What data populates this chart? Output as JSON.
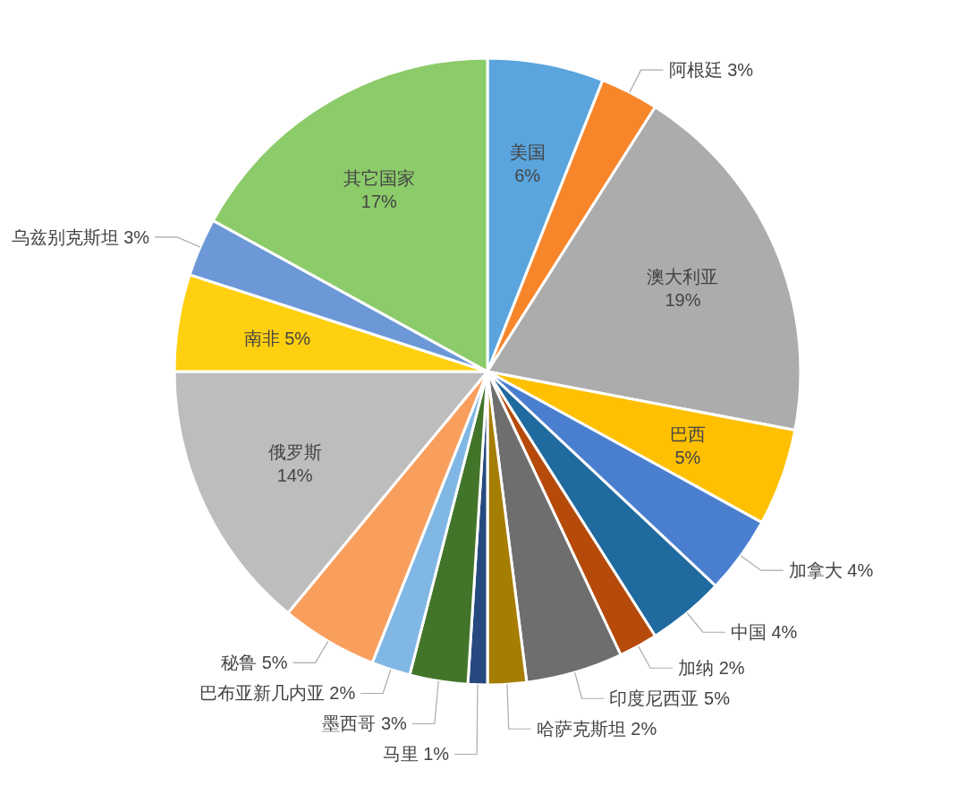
{
  "chart_data": {
    "type": "pie",
    "value_labels": [
      "6%",
      "3%",
      "19%",
      "5%",
      "4%",
      "4%",
      "2%",
      "5%",
      "2%",
      "1%",
      "3%",
      "2%",
      "5%",
      "14%",
      "5%",
      "3%",
      "17%"
    ],
    "categories": [
      "美国",
      "阿根廷",
      "澳大利亚",
      "巴西",
      "加拿大",
      "中国",
      "加纳",
      "印度尼西亚",
      "哈萨克斯坦",
      "马里",
      "墨西哥",
      "巴布亚新几内亚",
      "秘鲁",
      "俄罗斯",
      "南非",
      "乌兹别克斯坦",
      "其它国家"
    ],
    "values": [
      6,
      3,
      19,
      5,
      4,
      4,
      2,
      5,
      2,
      1,
      3,
      2,
      5,
      14,
      5,
      3,
      17
    ],
    "colors": [
      "#5aa5dd",
      "#f7862b",
      "#acacac",
      "#fec000",
      "#4a7fd0",
      "#1f6a9e",
      "#b54a0a",
      "#6e6e6e",
      "#a57d00",
      "#264a80",
      "#42752a",
      "#80b7e5",
      "#f99f5e",
      "#bdbdbd",
      "#fed00f",
      "#6c98d8",
      "#8ccb69"
    ]
  }
}
